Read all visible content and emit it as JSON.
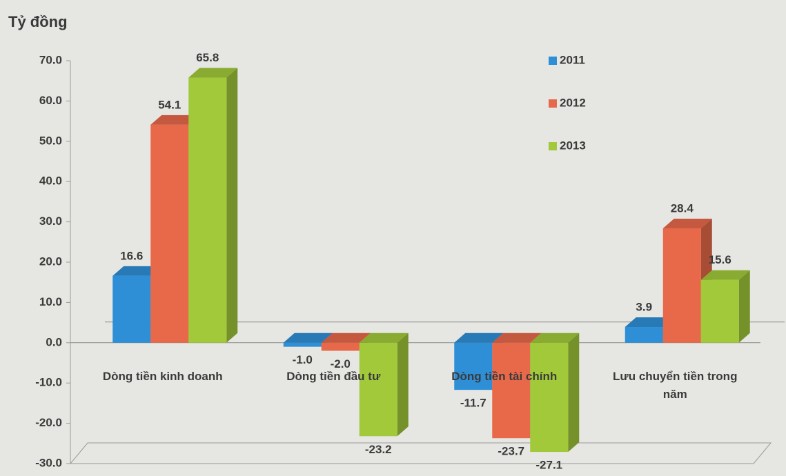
{
  "chart_data": {
    "type": "bar3d",
    "y_label": "Tỷ đồng",
    "categories": [
      "Dòng tiền kinh doanh",
      "Dòng tiền đầu tư",
      "Dòng tiền tài chính",
      "Lưu chuyển tiền trong năm"
    ],
    "series": [
      {
        "name": "2011",
        "color": "#2e8fd6",
        "values": [
          16.6,
          -1.0,
          -11.7,
          3.9
        ],
        "value_labels": [
          "16.6",
          "-1.0",
          "-11.7",
          "3.9"
        ]
      },
      {
        "name": "2012",
        "color": "#e8694a",
        "values": [
          54.1,
          -2.0,
          -23.7,
          28.4
        ],
        "value_labels": [
          "54.1",
          "-2.0",
          "-23.7",
          "28.4"
        ]
      },
      {
        "name": "2013",
        "color": "#a2c93a",
        "values": [
          65.8,
          -23.2,
          -27.1,
          15.6
        ],
        "value_labels": [
          "65.8",
          "-23.2",
          "-27.1",
          "15.6"
        ]
      }
    ],
    "ylim": [
      -30,
      70
    ],
    "yticks": [
      {
        "value": -30,
        "label": "-30.0"
      },
      {
        "value": -20,
        "label": "-20.0"
      },
      {
        "value": -10,
        "label": "-10.0"
      },
      {
        "value": 0,
        "label": "0.0"
      },
      {
        "value": 10,
        "label": "10.0"
      },
      {
        "value": 20,
        "label": "20.0"
      },
      {
        "value": 30,
        "label": "30.0"
      },
      {
        "value": 40,
        "label": "40.0"
      },
      {
        "value": 50,
        "label": "50.0"
      },
      {
        "value": 60,
        "label": "60.0"
      },
      {
        "value": 70,
        "label": "70.0"
      }
    ],
    "legend": "top-right"
  }
}
